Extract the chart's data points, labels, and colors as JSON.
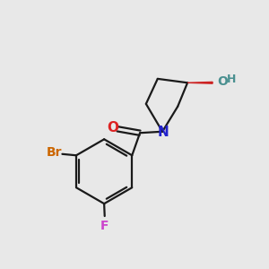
{
  "background_color": "#e8e8e8",
  "bond_color": "#1a1a1a",
  "atoms": {
    "N": {
      "color": "#2222cc",
      "fontsize": 11
    },
    "O_carbonyl": {
      "color": "#dd2222",
      "fontsize": 11
    },
    "O_hydroxyl": {
      "color": "#4a9090",
      "fontsize": 10
    },
    "Br": {
      "color": "#cc6600",
      "fontsize": 10
    },
    "F": {
      "color": "#cc44cc",
      "fontsize": 10
    },
    "H": {
      "color": "#4a9090",
      "fontsize": 9
    }
  },
  "figsize": [
    3.0,
    3.0
  ],
  "dpi": 100
}
